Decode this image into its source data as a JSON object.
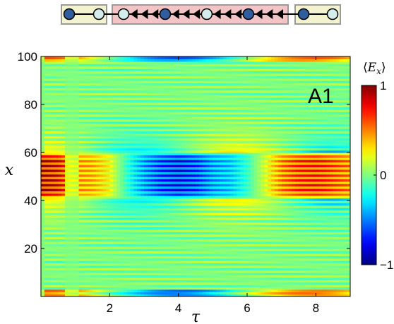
{
  "chain_diagram": {
    "left_group": [
      "filled",
      "open"
    ],
    "middle_group": [
      "open",
      "arrow",
      "arrow",
      "arrow",
      "filled",
      "arrow",
      "arrow",
      "arrow",
      "open",
      "arrow",
      "arrow",
      "arrow",
      "filled",
      "arrow",
      "arrow",
      "arrow"
    ],
    "right_group": [
      "filled",
      "open"
    ],
    "colors": {
      "side_box": "#f3f3cf",
      "middle_box": "#f2c4c6",
      "box_border": "#9a9a9a",
      "filled_node": "#2f5d9e",
      "open_node": "#d4ecec"
    }
  },
  "chart_data": {
    "type": "heatmap",
    "panel_label": "A1",
    "xlabel": "τ",
    "ylabel": "x",
    "colorbar_label": "⟨E_x⟩",
    "colorbar_label_parts": {
      "open": "⟨",
      "main": "E",
      "sub": "x",
      "close": "⟩"
    },
    "colormap": "jet",
    "xlim": [
      0,
      9
    ],
    "ylim": [
      0,
      100
    ],
    "clim": [
      -1,
      1
    ],
    "x_ticks": [
      2,
      4,
      6,
      8
    ],
    "x_tick_labels": [
      "2",
      "4",
      "6",
      "8"
    ],
    "y_ticks": [
      20,
      40,
      60,
      80,
      100
    ],
    "y_tick_labels": [
      "20",
      "40",
      "60",
      "80",
      "100"
    ],
    "colorbar_ticks": [
      1,
      0,
      -1
    ],
    "colorbar_tick_labels": [
      "1",
      "0",
      "−1"
    ],
    "grid": false,
    "initial_excitation": {
      "x_range": [
        41,
        60
      ],
      "value": 1
    },
    "central_band_value_vs_tau": {
      "tau": [
        0.0,
        0.5,
        1.0,
        1.5,
        2.0,
        2.5,
        3.0,
        3.5,
        4.0,
        4.5,
        5.0,
        5.5,
        6.0,
        6.5,
        7.0,
        7.5,
        8.0,
        8.5,
        9.0
      ],
      "value": [
        1.0,
        0.9,
        0.55,
        0.5,
        0.3,
        -0.2,
        -0.55,
        -0.75,
        -0.85,
        -0.75,
        -0.55,
        -0.45,
        -0.2,
        0.2,
        0.6,
        0.75,
        0.8,
        0.7,
        0.6
      ]
    }
  }
}
